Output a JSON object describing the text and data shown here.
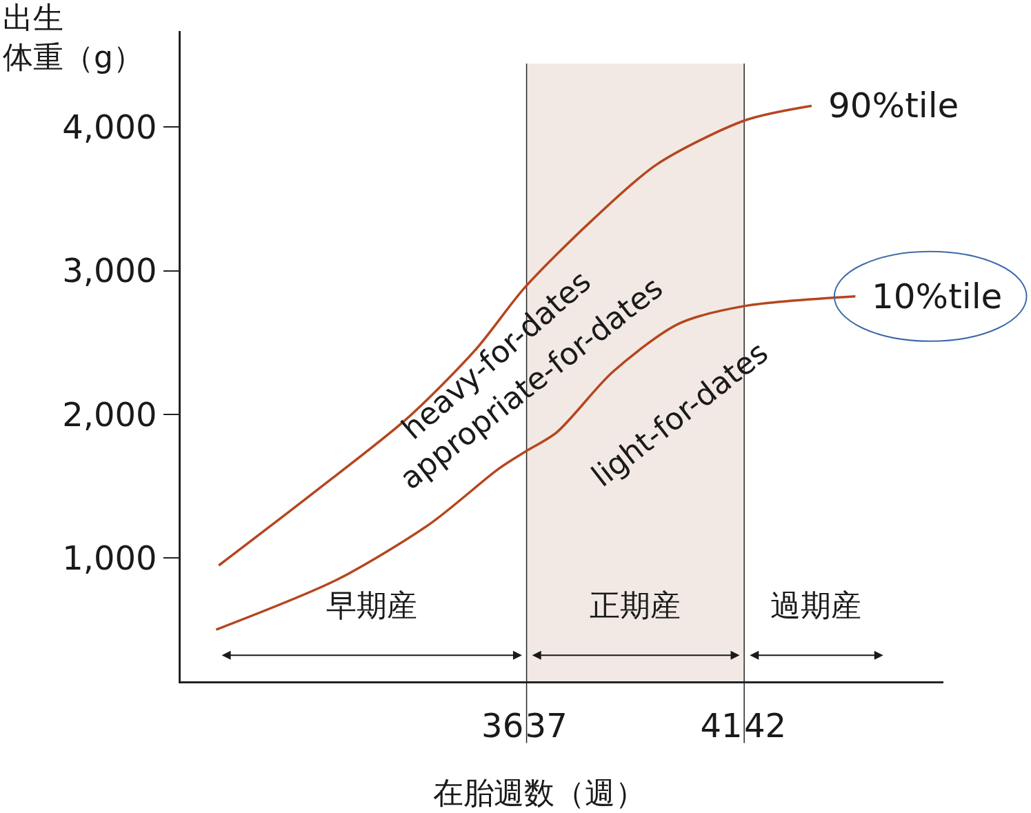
{
  "chart_data": {
    "type": "line",
    "ylabel": "出生体重（g）",
    "xlabel": "在胎週数（週）",
    "xlim": [
      28.65,
      46.07
    ],
    "ylim": [
      140,
      4670
    ],
    "xticks": [
      36,
      37,
      41,
      42
    ],
    "yticks": [
      {
        "value": 1000,
        "label": "1,000"
      },
      {
        "value": 2000,
        "label": "2,000"
      },
      {
        "value": 3000,
        "label": "3,000"
      },
      {
        "value": 4000,
        "label": "4,000"
      }
    ],
    "grid": false,
    "legend": false,
    "marker": "none",
    "line_style": "solid",
    "series": [
      {
        "name": "90%tile",
        "color": "#b5461e",
        "x": [
          29.52,
          31.72,
          33.82,
          35.39,
          36.5,
          38.01,
          39.52,
          41.54,
          43.06
        ],
        "values": [
          947,
          1462,
          1971,
          2452,
          2880,
          3341,
          3740,
          4048,
          4149
        ]
      },
      {
        "name": "10%tile",
        "color": "#b5461e",
        "x": [
          29.46,
          32.24,
          34.34,
          35.91,
          36.5,
          37.24,
          38.51,
          40.02,
          41.54,
          44.06
        ],
        "values": [
          500,
          851,
          1236,
          1620,
          1736,
          1875,
          2293,
          2630,
          2755,
          2822
        ]
      }
    ],
    "bands": [
      {
        "axis": "x",
        "from": 36.55,
        "to": 41.52,
        "color": "#f2e9e4"
      }
    ],
    "ref_lines": [
      {
        "axis": "x",
        "value": 36.55,
        "color": "#222222"
      },
      {
        "axis": "x",
        "value": 41.52,
        "color": "#222222"
      }
    ],
    "annotations": [
      "heavy-for-dates",
      "appropriate-for-dates",
      "light-for-dates",
      "早期産",
      "正期産",
      "過期産"
    ]
  }
}
